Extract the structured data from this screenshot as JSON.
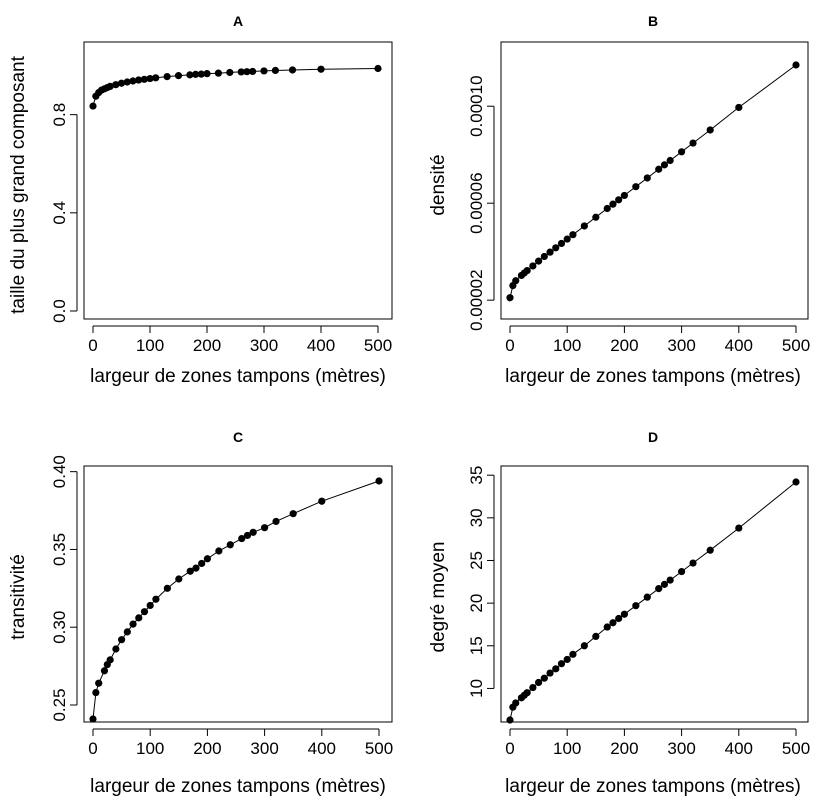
{
  "chart_data": [
    {
      "type": "line",
      "title": "A",
      "xlabel": "largeur de zones tampons (mètres)",
      "ylabel": "taille du plus grand composant",
      "xlim": [
        0,
        500
      ],
      "ylim": [
        0,
        0.99
      ],
      "xticks": [
        0,
        100,
        200,
        300,
        400,
        500
      ],
      "xtick_labels": [
        "0",
        "100",
        "200",
        "300",
        "400",
        "500"
      ],
      "yticks": [
        0,
        0.4,
        0.8
      ],
      "ytick_labels": [
        "0.0",
        "0.4",
        "0.8"
      ],
      "grid": false,
      "x": [
        0,
        5,
        10,
        15,
        20,
        25,
        30,
        40,
        50,
        60,
        70,
        80,
        90,
        100,
        110,
        130,
        150,
        170,
        180,
        190,
        200,
        220,
        240,
        260,
        270,
        280,
        300,
        320,
        350,
        400,
        500
      ],
      "y": [
        0.835,
        0.875,
        0.89,
        0.9,
        0.905,
        0.91,
        0.915,
        0.922,
        0.928,
        0.933,
        0.937,
        0.941,
        0.944,
        0.947,
        0.95,
        0.955,
        0.959,
        0.962,
        0.964,
        0.965,
        0.967,
        0.969,
        0.972,
        0.974,
        0.975,
        0.976,
        0.978,
        0.98,
        0.982,
        0.985,
        0.988
      ]
    },
    {
      "type": "line",
      "title": "B",
      "xlabel": "largeur de zones tampons (mètres)",
      "ylabel": "densité",
      "xlim": [
        0,
        500
      ],
      "ylim": [
        1.8e-05,
        0.000117
      ],
      "xticks": [
        0,
        100,
        200,
        300,
        400,
        500
      ],
      "xtick_labels": [
        "0",
        "100",
        "200",
        "300",
        "400",
        "500"
      ],
      "yticks": [
        2e-05,
        6e-05,
        0.0001
      ],
      "ytick_labels": [
        "0.00002",
        "0.00006",
        "0.00010"
      ],
      "grid": false,
      "x": [
        0,
        5,
        10,
        20,
        25,
        30,
        40,
        50,
        60,
        70,
        80,
        90,
        100,
        110,
        130,
        150,
        170,
        180,
        190,
        200,
        220,
        240,
        260,
        270,
        280,
        300,
        320,
        350,
        400,
        500
      ],
      "y": [
        2.1e-05,
        2.6e-05,
        2.8e-05,
        3.02e-05,
        3.12e-05,
        3.22e-05,
        3.41e-05,
        3.61e-05,
        3.8e-05,
        3.98e-05,
        4.16e-05,
        4.34e-05,
        4.52e-05,
        4.7e-05,
        5.06e-05,
        5.42e-05,
        5.78e-05,
        5.96e-05,
        6.14e-05,
        6.32e-05,
        6.68e-05,
        7.04e-05,
        7.4e-05,
        7.58e-05,
        7.76e-05,
        8.12e-05,
        8.48e-05,
        9.02e-05,
        9.95e-05,
        0.000117
      ]
    },
    {
      "type": "line",
      "title": "C",
      "xlabel": "largeur de zones tampons (mètres)",
      "ylabel": "transitivité",
      "xlim": [
        0,
        500
      ],
      "ylim": [
        0.241,
        0.394
      ],
      "xticks": [
        0,
        100,
        200,
        300,
        400,
        500
      ],
      "xtick_labels": [
        "0",
        "100",
        "200",
        "300",
        "400",
        "500"
      ],
      "yticks": [
        0.25,
        0.3,
        0.35,
        0.4
      ],
      "ytick_labels": [
        "0.25",
        "0.30",
        "0.35",
        "0.40"
      ],
      "grid": false,
      "x": [
        0,
        5,
        10,
        20,
        25,
        30,
        40,
        50,
        60,
        70,
        80,
        90,
        100,
        110,
        130,
        150,
        170,
        180,
        190,
        200,
        220,
        240,
        260,
        270,
        280,
        300,
        320,
        350,
        400,
        500
      ],
      "y": [
        0.241,
        0.258,
        0.264,
        0.272,
        0.276,
        0.279,
        0.286,
        0.292,
        0.297,
        0.302,
        0.306,
        0.31,
        0.314,
        0.318,
        0.325,
        0.331,
        0.336,
        0.338,
        0.341,
        0.344,
        0.349,
        0.353,
        0.357,
        0.359,
        0.361,
        0.364,
        0.368,
        0.373,
        0.381,
        0.394
      ]
    },
    {
      "type": "line",
      "title": "D",
      "xlabel": "largeur de zones tampons (mètres)",
      "ylabel": "degré moyen",
      "xlim": [
        0,
        500
      ],
      "ylim": [
        6.3,
        34.2
      ],
      "xticks": [
        0,
        100,
        200,
        300,
        400,
        500
      ],
      "xtick_labels": [
        "0",
        "100",
        "200",
        "300",
        "400",
        "500"
      ],
      "yticks": [
        10,
        15,
        20,
        25,
        30,
        35
      ],
      "ytick_labels": [
        "10",
        "15",
        "20",
        "25",
        "30",
        "35"
      ],
      "grid": false,
      "x": [
        0,
        5,
        10,
        20,
        25,
        30,
        40,
        50,
        60,
        70,
        80,
        90,
        100,
        110,
        130,
        150,
        170,
        180,
        190,
        200,
        220,
        240,
        260,
        270,
        280,
        300,
        320,
        350,
        400,
        500
      ],
      "y": [
        6.3,
        7.8,
        8.3,
        8.9,
        9.2,
        9.5,
        10.1,
        10.7,
        11.2,
        11.8,
        12.3,
        12.9,
        13.4,
        14.0,
        15.0,
        16.1,
        17.2,
        17.7,
        18.2,
        18.7,
        19.7,
        20.7,
        21.7,
        22.2,
        22.7,
        23.7,
        24.7,
        26.2,
        28.8,
        34.2
      ]
    }
  ]
}
